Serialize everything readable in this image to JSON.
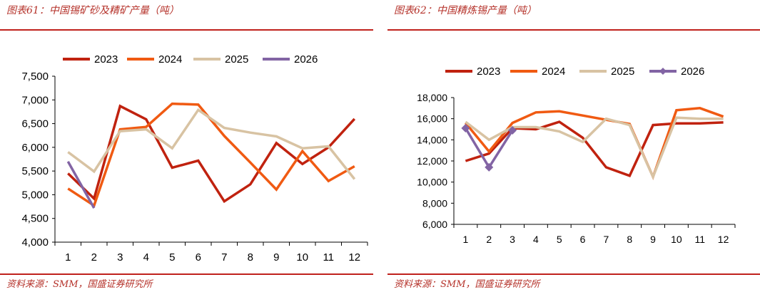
{
  "left": {
    "title": "图表61：中国锡矿砂及精矿产量（吨）",
    "source": "资料来源：SMM，国盛证券研究所"
  },
  "right": {
    "title": "图表62：中国精炼锡产量（吨）",
    "source": "资料来源：SMM，国盛证券研究所"
  },
  "chart_data": [
    {
      "type": "line",
      "title": "图表61：中国锡矿砂及精矿产量（吨）",
      "x": [
        "1",
        "2",
        "3",
        "4",
        "5",
        "6",
        "7",
        "8",
        "9",
        "10",
        "11",
        "12"
      ],
      "ylim": [
        4000,
        7500
      ],
      "yticks": [
        "4,000",
        "4,500",
        "5,000",
        "5,500",
        "6,000",
        "6,500",
        "7,000",
        "7,500"
      ],
      "grid": false,
      "legend_position": "top",
      "series": [
        {
          "name": "2023",
          "color": "#c0220f",
          "values": [
            5450,
            4920,
            6870,
            6590,
            5570,
            5720,
            4860,
            5220,
            6090,
            5650,
            6000,
            6600
          ]
        },
        {
          "name": "2024",
          "color": "#f05a12",
          "values": [
            5130,
            4770,
            6380,
            6430,
            6920,
            6900,
            6240,
            5680,
            5110,
            5920,
            5290,
            5600
          ]
        },
        {
          "name": "2025",
          "color": "#d8c3a3",
          "values": [
            5900,
            5490,
            6340,
            6380,
            5980,
            6790,
            6410,
            6310,
            6230,
            5980,
            6020,
            5330
          ]
        },
        {
          "name": "2026",
          "color": "#8264a4",
          "values": [
            5700,
            4720,
            null,
            null,
            null,
            null,
            null,
            null,
            null,
            null,
            null,
            null
          ]
        }
      ]
    },
    {
      "type": "line",
      "title": "图表62：中国精炼锡产量（吨）",
      "x": [
        "1",
        "2",
        "3",
        "4",
        "5",
        "6",
        "7",
        "8",
        "9",
        "10",
        "11",
        "12"
      ],
      "ylim": [
        6000,
        18000
      ],
      "yticks": [
        "6,000",
        "8,000",
        "10,000",
        "12,000",
        "14,000",
        "16,000",
        "18,000"
      ],
      "grid": false,
      "legend_position": "top",
      "series": [
        {
          "name": "2023",
          "color": "#c0220f",
          "values": [
            12000,
            12700,
            15100,
            15000,
            15700,
            14200,
            11400,
            10600,
            15400,
            15550,
            15550,
            15650
          ]
        },
        {
          "name": "2024",
          "color": "#f05a12",
          "values": [
            15600,
            12900,
            15600,
            16600,
            16700,
            16300,
            15900,
            15500,
            10500,
            16800,
            17000,
            16200
          ]
        },
        {
          "name": "2025",
          "color": "#d8c3a3",
          "values": [
            15700,
            14000,
            15200,
            15200,
            14800,
            13800,
            16000,
            15400,
            10500,
            16100,
            16000,
            16000
          ]
        },
        {
          "name": "2026",
          "color": "#8264a4",
          "values": [
            15100,
            11400,
            14900,
            null,
            null,
            null,
            null,
            null,
            null,
            null,
            null,
            null
          ],
          "marker": "diamond"
        }
      ]
    }
  ]
}
